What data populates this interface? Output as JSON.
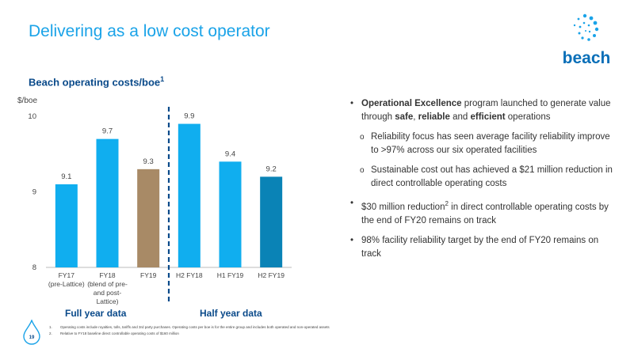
{
  "slide": {
    "title": "Delivering as a low cost operator",
    "chart_heading": "Beach operating costs/boe",
    "chart_heading_sup": "1",
    "logo_text": "beach",
    "page_number": "19",
    "group_labels": {
      "full_year": "Full year data",
      "half_year": "Half year data"
    }
  },
  "bullets": [
    {
      "type": "main",
      "parts": [
        {
          "text": "Operational Excellence",
          "bold": true
        },
        {
          "text": " program launched to generate value through ",
          "bold": false
        },
        {
          "text": "safe",
          "bold": true
        },
        {
          "text": ", ",
          "bold": false
        },
        {
          "text": "reliable",
          "bold": true
        },
        {
          "text": " and ",
          "bold": false
        },
        {
          "text": "efficient",
          "bold": true
        },
        {
          "text": " operations",
          "bold": false
        }
      ]
    },
    {
      "type": "sub",
      "parts": [
        {
          "text": "Reliability focus has seen average facility reliability improve to >97% across our six operated facilities",
          "bold": false
        }
      ]
    },
    {
      "type": "sub",
      "parts": [
        {
          "text": "Sustainable cost out has achieved a $21 million reduction in direct controllable operating costs",
          "bold": false
        }
      ]
    },
    {
      "type": "main",
      "parts": [
        {
          "text": "$30 million reduction",
          "bold": false
        },
        {
          "text": "2",
          "bold": false,
          "sup": true
        },
        {
          "text": " in direct controllable operating costs by the end of FY20 remains on track",
          "bold": false
        }
      ]
    },
    {
      "type": "main",
      "parts": [
        {
          "text": "98% facility reliability target by the end of FY20 remains on track",
          "bold": false
        }
      ]
    }
  ],
  "footnotes": [
    {
      "num": "1.",
      "text": "Operating costs include royalties, tolls, tariffs and 3rd party purchases. Operating costs per boe is for the entire group and includes both operated and non-operated assets"
    },
    {
      "num": "2.",
      "text": "Relative to FY18 baseline direct controllable operating costs of $160 million"
    }
  ],
  "chart_data": {
    "type": "bar",
    "ylabel": "$/boe",
    "ylim": [
      8,
      10
    ],
    "yticks": [
      8,
      9,
      10
    ],
    "categories": [
      [
        "FY17",
        "(pre-Lattice)"
      ],
      [
        "FY18",
        "(blend of pre-",
        "and post-",
        "Lattice)"
      ],
      [
        "FY19"
      ],
      [
        "H2 FY18"
      ],
      [
        "H1 FY19"
      ],
      [
        "H2 FY19"
      ]
    ],
    "values": [
      9.1,
      9.7,
      9.3,
      9.9,
      9.4,
      9.2
    ],
    "labels": [
      "9.1",
      "9.7",
      "9.3",
      "9.9",
      "9.4",
      "9.2"
    ],
    "colors": [
      "#10aeef",
      "#10aeef",
      "#a88a66",
      "#10aeef",
      "#10aeef",
      "#0a83b6"
    ],
    "divider_after_index": 2,
    "colors_theme": {
      "axis": "#bbbbbb",
      "divider": "#0a4a8a",
      "text": "#444444"
    }
  }
}
